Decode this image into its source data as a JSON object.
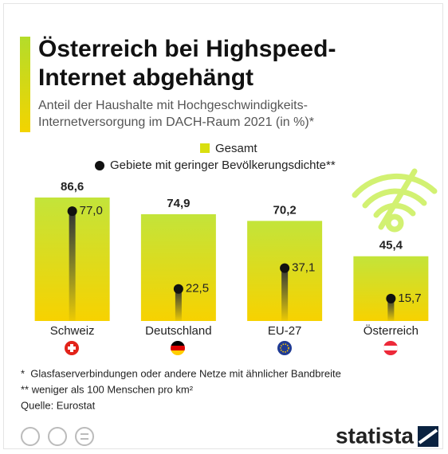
{
  "chart_data": {
    "type": "bar",
    "title": "Österreich bei Highspeed-Internet abgehängt",
    "subtitle": "Anteil der Haushalte mit Hochgeschwindigkeits-Internetversorgung im DACH-Raum 2021 (in %)*",
    "categories": [
      "Schweiz",
      "Deutschland",
      "EU-27",
      "Österreich"
    ],
    "series": [
      {
        "name": "Gesamt",
        "color": "#d9df0f",
        "values": [
          86.6,
          74.9,
          70.2,
          45.4
        ],
        "value_labels": [
          "86,6",
          "74,9",
          "70,2",
          "45,4"
        ]
      },
      {
        "name": "Gebiete mit geringer Bevölkerungsdichte**",
        "color": "#111111",
        "values": [
          77.0,
          22.5,
          37.1,
          15.7
        ],
        "value_labels": [
          "77,0",
          "22,5",
          "37,1",
          "15,7"
        ]
      }
    ],
    "ylim": [
      0,
      100
    ],
    "footnotes": [
      "*  Glasfaserverbindungen oder andere Netze mit ähnlicher Bandbreite",
      "** weniger als 100 Menschen pro km²",
      "Quelle: Eurostat"
    ],
    "brand": "statista"
  }
}
